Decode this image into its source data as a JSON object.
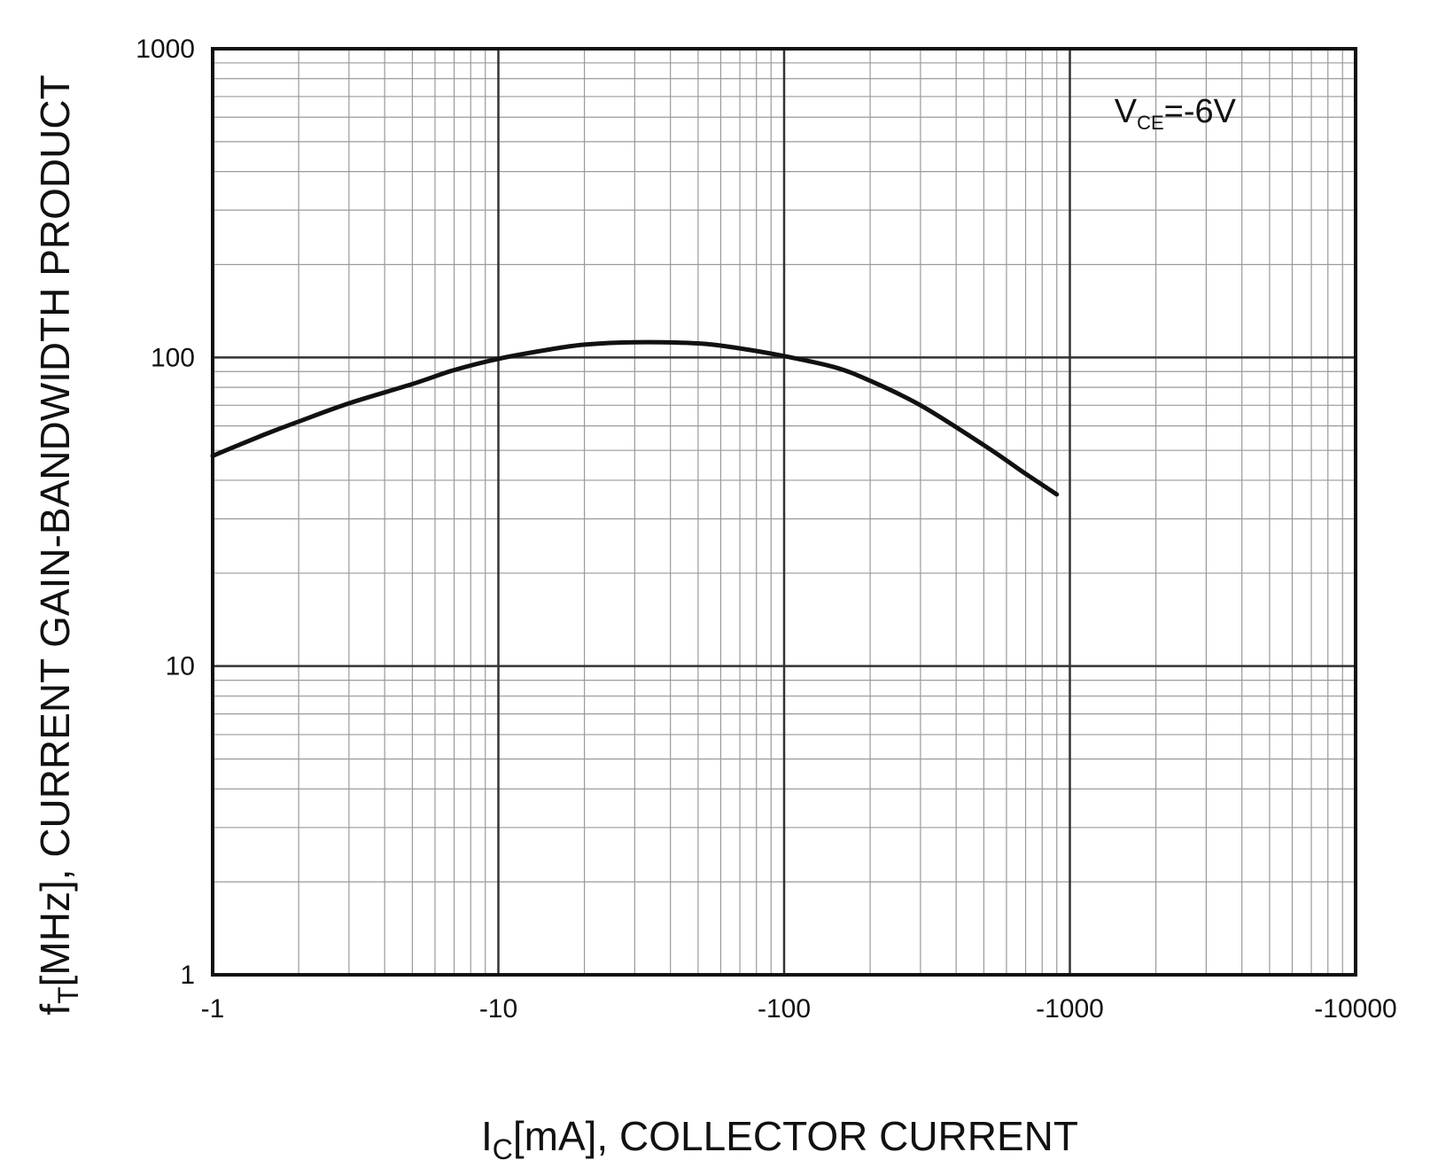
{
  "chart_data": {
    "type": "line",
    "x_scale": "log",
    "y_scale": "log",
    "xlim": [
      -1,
      -10000
    ],
    "ylim": [
      1,
      1000
    ],
    "x_ticks": [
      "-1",
      "-10",
      "-100",
      "-1000",
      "-10000"
    ],
    "y_ticks": [
      "1",
      "10",
      "100",
      "1000"
    ],
    "xlabel": {
      "main": "I",
      "sub": "C",
      "rest": "[mA], COLLECTOR CURRENT"
    },
    "ylabel": {
      "main": "f",
      "sub": "T",
      "rest": "[MHz], CURRENT GAIN-BANDWIDTH PRODUCT"
    },
    "annotation": {
      "main": "V",
      "sub": "CE",
      "rest": "=-6V"
    },
    "grid": true,
    "series": [
      {
        "x": [
          -1,
          -1.5,
          -2,
          -3,
          -5,
          -7,
          -10,
          -15,
          -20,
          -30,
          -50,
          -70,
          -100,
          -150,
          -200,
          -300,
          -500,
          -700,
          -900
        ],
        "y": [
          48,
          56,
          62,
          71,
          82,
          91,
          99,
          106,
          110,
          112,
          111,
          107,
          101,
          93,
          84,
          70,
          52,
          42,
          36
        ]
      }
    ],
    "line_color": "#111111",
    "grid_color": "#9a9a9a",
    "major_grid_color": "#333333"
  }
}
